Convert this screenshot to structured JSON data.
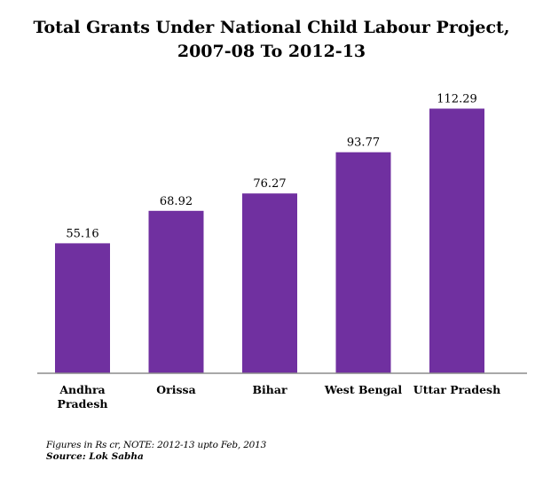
{
  "header": {
    "title_line1": "Total Grants Under National Child Labour Project,",
    "title_line2": "2007-08 To 2012-13"
  },
  "chart_data": {
    "type": "bar",
    "title": "Total Grants Under National Child Labour Project, 2007-08 To 2012-13",
    "xlabel": "",
    "ylabel": "",
    "categories": [
      "Andhra Pradesh",
      "Orissa",
      "Bihar",
      "West Bengal",
      "Uttar Pradesh"
    ],
    "category_lines": [
      [
        "Andhra",
        "Pradesh"
      ],
      [
        "Orissa"
      ],
      [
        "Bihar"
      ],
      [
        "West Bengal"
      ],
      [
        "Uttar Pradesh"
      ]
    ],
    "values": [
      55.16,
      68.92,
      76.27,
      93.77,
      112.29
    ],
    "value_labels": [
      "55.16",
      "68.92",
      "76.27",
      "93.77",
      "112.29"
    ],
    "ylim": [
      0,
      120
    ],
    "grid": false,
    "bar_color": "#7030a0",
    "axis_color": "#8c8c8c"
  },
  "footer": {
    "note": "Figures in Rs cr, NOTE: 2012-13 upto Feb, 2013",
    "source": "Source: Lok Sabha"
  }
}
